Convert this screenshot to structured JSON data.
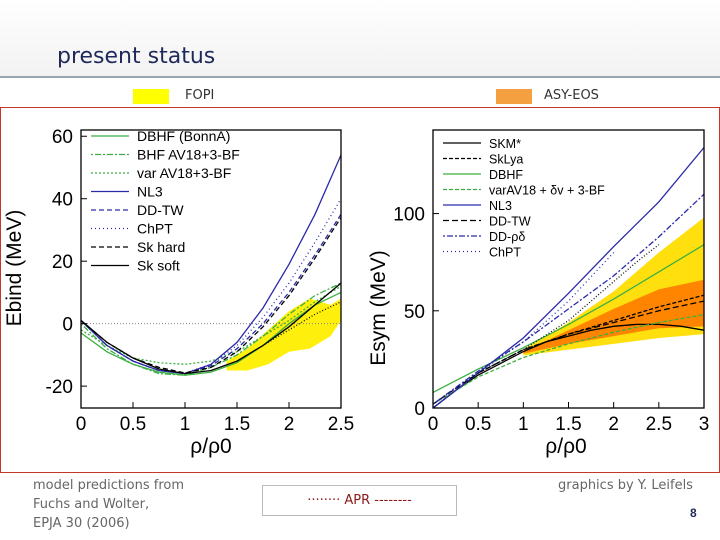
{
  "header": {
    "title": "present status"
  },
  "legend": [
    {
      "label": "FOPI",
      "color": "#ffff00"
    },
    {
      "label": "ASY-EOS",
      "color": "#f5a040"
    }
  ],
  "footer": {
    "left_lines": [
      "model predictions from",
      "Fuchs and Wolter,",
      "EPJA 30 (2006)"
    ],
    "center": "········ APR --------",
    "right": "graphics by Y. Leifels",
    "page": "8"
  },
  "chart_data": [
    {
      "type": "line",
      "title": "",
      "xlabel": "ρ/ρ0",
      "ylabel": "Ebind (MeV)",
      "xlim": [
        0,
        2.5
      ],
      "ylim": [
        -27,
        62
      ],
      "xticks": [
        "0",
        "0.5",
        "1",
        "1.5",
        "2",
        "2.5"
      ],
      "yticks": [
        "60",
        "40",
        "20",
        "0",
        "-20"
      ],
      "ytick_values": [
        60,
        40,
        20,
        0,
        -20
      ],
      "band": {
        "name": "FOPI",
        "color": "#ffee00",
        "upper": [
          [
            1.4,
            -12
          ],
          [
            1.6,
            -8
          ],
          [
            1.8,
            -2
          ],
          [
            2.0,
            4
          ],
          [
            2.2,
            8
          ],
          [
            2.4,
            6
          ],
          [
            2.5,
            8
          ]
        ],
        "lower": [
          [
            2.5,
            1
          ],
          [
            2.4,
            -4
          ],
          [
            2.2,
            -8
          ],
          [
            2.0,
            -9
          ],
          [
            1.8,
            -13
          ],
          [
            1.6,
            -15
          ],
          [
            1.4,
            -15
          ]
        ]
      },
      "series": [
        {
          "name": "DBHF (BonnA)",
          "color": "#3cb043",
          "dash": "",
          "points": [
            [
              0,
              -3
            ],
            [
              0.25,
              -9
            ],
            [
              0.5,
              -13
            ],
            [
              0.75,
              -15.5
            ],
            [
              1,
              -16.5
            ],
            [
              1.25,
              -15.5
            ],
            [
              1.5,
              -12.5
            ],
            [
              1.75,
              -7
            ],
            [
              2,
              0
            ],
            [
              2.25,
              6
            ],
            [
              2.5,
              10
            ]
          ]
        },
        {
          "name": "BHF AV18+3-BF",
          "color": "#3cb043",
          "dash": "2,2,6,2",
          "points": [
            [
              0,
              0
            ],
            [
              0.25,
              -8
            ],
            [
              0.5,
              -13
            ],
            [
              0.75,
              -16
            ],
            [
              1,
              -16.5
            ],
            [
              1.25,
              -14
            ],
            [
              1.5,
              -10
            ],
            [
              1.75,
              -4
            ],
            [
              2,
              3
            ],
            [
              2.25,
              9
            ],
            [
              2.5,
              13
            ]
          ]
        },
        {
          "name": "var AV18+3-BF",
          "color": "#3cb043",
          "dash": "2,2",
          "points": [
            [
              0,
              -2
            ],
            [
              0.25,
              -7
            ],
            [
              0.5,
              -11
            ],
            [
              0.75,
              -12.5
            ],
            [
              1,
              -13
            ],
            [
              1.25,
              -12
            ],
            [
              1.5,
              -9
            ],
            [
              1.75,
              -4
            ],
            [
              2,
              1
            ],
            [
              2.25,
              7
            ],
            [
              2.5,
              12
            ]
          ]
        },
        {
          "name": "NL3",
          "color": "#2a2aa8",
          "dash": "",
          "points": [
            [
              0,
              1
            ],
            [
              0.25,
              -7
            ],
            [
              0.5,
              -12
            ],
            [
              0.75,
              -15
            ],
            [
              1,
              -16
            ],
            [
              1.25,
              -13
            ],
            [
              1.5,
              -6
            ],
            [
              1.75,
              5
            ],
            [
              2,
              19
            ],
            [
              2.25,
              35
            ],
            [
              2.5,
              54
            ]
          ]
        },
        {
          "name": "DD-TW",
          "color": "#2a2aa8",
          "dash": "5,3",
          "points": [
            [
              0,
              1
            ],
            [
              0.25,
              -7
            ],
            [
              0.5,
              -12
            ],
            [
              0.75,
              -15
            ],
            [
              1,
              -16
            ],
            [
              1.25,
              -13.5
            ],
            [
              1.5,
              -8
            ],
            [
              1.75,
              0
            ],
            [
              2,
              10
            ],
            [
              2.25,
              22
            ],
            [
              2.5,
              35
            ]
          ]
        },
        {
          "name": "ChPT",
          "color": "#2a2aa8",
          "dash": "1,3",
          "points": [
            [
              0,
              1
            ],
            [
              0.25,
              -7
            ],
            [
              0.5,
              -12
            ],
            [
              0.75,
              -15
            ],
            [
              1,
              -15.8
            ],
            [
              1.25,
              -13
            ],
            [
              1.5,
              -7
            ],
            [
              1.75,
              2
            ],
            [
              2,
              13
            ],
            [
              2.25,
              26
            ],
            [
              2.5,
              40
            ]
          ]
        },
        {
          "name": "Sk hard",
          "color": "#000000",
          "dash": "5,3",
          "points": [
            [
              0,
              1
            ],
            [
              0.25,
              -6
            ],
            [
              0.5,
              -11
            ],
            [
              0.75,
              -14
            ],
            [
              1,
              -15.8
            ],
            [
              1.25,
              -14
            ],
            [
              1.5,
              -9
            ],
            [
              1.75,
              -1
            ],
            [
              2,
              9
            ],
            [
              2.25,
              21
            ],
            [
              2.5,
              34
            ]
          ]
        },
        {
          "name": "Sk soft",
          "color": "#000000",
          "dash": "",
          "points": [
            [
              0,
              1
            ],
            [
              0.25,
              -6
            ],
            [
              0.5,
              -11
            ],
            [
              0.75,
              -14.5
            ],
            [
              1,
              -16
            ],
            [
              1.25,
              -15
            ],
            [
              1.5,
              -12
            ],
            [
              1.75,
              -7
            ],
            [
              2,
              -1
            ],
            [
              2.25,
              6
            ],
            [
              2.5,
              13
            ]
          ]
        },
        {
          "name": "APR",
          "color": "#111111",
          "dash": "1,2",
          "points": [
            [
              1.5,
              -12
            ],
            [
              1.75,
              -7
            ],
            [
              2,
              -2
            ],
            [
              2.25,
              3
            ],
            [
              2.5,
              7
            ]
          ]
        }
      ],
      "reference_line": {
        "y": 0,
        "style": "dotted"
      }
    },
    {
      "type": "line",
      "title": "",
      "xlabel": "ρ/ρ0",
      "ylabel": "Esym (MeV)",
      "xlim": [
        0,
        3
      ],
      "ylim": [
        0,
        143
      ],
      "xticks": [
        "0",
        "0.5",
        "1",
        "1.5",
        "2",
        "2.5",
        "3"
      ],
      "yticks": [
        "100",
        "50",
        "0"
      ],
      "ytick_values": [
        100,
        50,
        0
      ],
      "band": {
        "name": "ASY-EOS",
        "color": "#ff7f00",
        "upper": [
          [
            1.0,
            29
          ],
          [
            1.5,
            40
          ],
          [
            2.0,
            51
          ],
          [
            2.5,
            61
          ],
          [
            3.0,
            66
          ]
        ],
        "lower": [
          [
            3.0,
            42
          ],
          [
            2.5,
            41
          ],
          [
            2.0,
            37
          ],
          [
            1.5,
            33
          ],
          [
            1.0,
            28
          ]
        ]
      },
      "band_outer": {
        "name": "FOPI",
        "color": "#ffdd00",
        "upper": [
          [
            1.0,
            30
          ],
          [
            1.5,
            44
          ],
          [
            2.0,
            60
          ],
          [
            2.5,
            80
          ],
          [
            3.0,
            98
          ]
        ],
        "lower": [
          [
            3.0,
            38
          ],
          [
            2.5,
            36
          ],
          [
            2.0,
            33
          ],
          [
            1.5,
            30
          ],
          [
            1.0,
            27
          ]
        ]
      },
      "series": [
        {
          "name": "SKM*",
          "color": "#000000",
          "dash": "",
          "points": [
            [
              0,
              0
            ],
            [
              0.25,
              9
            ],
            [
              0.5,
              17
            ],
            [
              0.75,
              23
            ],
            [
              1,
              29
            ],
            [
              1.25,
              34
            ],
            [
              1.5,
              37
            ],
            [
              1.75,
              40
            ],
            [
              2,
              42
            ],
            [
              2.25,
              43
            ],
            [
              2.5,
              43
            ],
            [
              2.75,
              42
            ],
            [
              3,
              40
            ]
          ]
        },
        {
          "name": "SkLya",
          "color": "#000000",
          "dash": "4,2",
          "points": [
            [
              0,
              0
            ],
            [
              0.5,
              18
            ],
            [
              1,
              30
            ],
            [
              1.5,
              38
            ],
            [
              2,
              45
            ],
            [
              2.5,
              52
            ],
            [
              3,
              58
            ]
          ]
        },
        {
          "name": "DBHF",
          "color": "#3cb043",
          "dash": "",
          "points": [
            [
              0,
              8
            ],
            [
              0.5,
              20
            ],
            [
              1,
              31
            ],
            [
              1.5,
              43
            ],
            [
              2,
              56
            ],
            [
              2.5,
              70
            ],
            [
              3,
              84
            ]
          ]
        },
        {
          "name": "varAV18 + δv + 3-BF",
          "color": "#3cb043",
          "dash": "4,2",
          "points": [
            [
              0,
              2
            ],
            [
              0.5,
              16
            ],
            [
              1,
              26
            ],
            [
              1.5,
              33
            ],
            [
              2,
              39
            ],
            [
              2.5,
              44
            ],
            [
              3,
              48
            ]
          ]
        },
        {
          "name": "NL3",
          "color": "#2a2aa8",
          "dash": "",
          "points": [
            [
              0,
              0
            ],
            [
              0.5,
              18
            ],
            [
              1,
              36
            ],
            [
              1.5,
              59
            ],
            [
              2,
              83
            ],
            [
              2.5,
              106
            ],
            [
              3,
              134
            ]
          ]
        },
        {
          "name": "DD-TW",
          "color": "#000000",
          "dash": "6,3",
          "points": [
            [
              0,
              2
            ],
            [
              0.5,
              18
            ],
            [
              1,
              30
            ],
            [
              1.5,
              38
            ],
            [
              2,
              44
            ],
            [
              2.5,
              50
            ],
            [
              3,
              55
            ]
          ]
        },
        {
          "name": "DD-ρδ",
          "color": "#2a2aa8",
          "dash": "2,2,6,2",
          "points": [
            [
              0,
              2
            ],
            [
              0.5,
              19
            ],
            [
              1,
              34
            ],
            [
              1.5,
              51
            ],
            [
              2,
              68
            ],
            [
              2.5,
              88
            ],
            [
              3,
              110
            ]
          ]
        },
        {
          "name": "ChPT",
          "color": "#2a2aa8",
          "dash": "1,3",
          "points": [
            [
              0,
              2
            ],
            [
              0.5,
              18
            ],
            [
              1,
              34
            ],
            [
              1.5,
              55
            ],
            [
              2,
              80
            ]
          ]
        },
        {
          "name": "APR",
          "color": "#111111",
          "dash": "1,2",
          "points": [
            [
              1,
              30
            ],
            [
              1.5,
              45
            ],
            [
              1.75,
              55
            ],
            [
              2,
              65
            ],
            [
              2.25,
              75
            ],
            [
              2.5,
              84
            ]
          ]
        }
      ]
    }
  ]
}
